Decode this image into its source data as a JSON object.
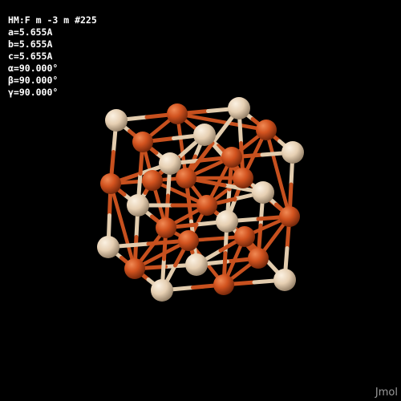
{
  "cell_info": {
    "space_group": "HM:F m -3 m #225",
    "a": "a=5.655A",
    "b": "b=5.655A",
    "c": "c=5.655A",
    "alpha": "α=90.000°",
    "beta": "β=90.000°",
    "gamma": "γ=90.000°"
  },
  "brand": "Jmol",
  "colors": {
    "background": "#000000",
    "atom_orange": "#d2531f",
    "atom_tan": "#e8d2b5",
    "bond_orange": "#c7501e",
    "bond_tan": "#e2ccae"
  }
}
